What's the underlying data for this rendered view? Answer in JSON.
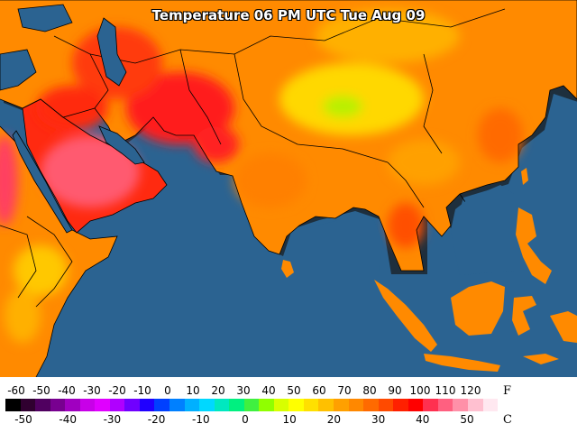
{
  "title": "Temperature 06 PM UTC Tue Aug 09",
  "legend": {
    "f_unit": "F",
    "c_unit": "C",
    "f_ticks": [
      "-60",
      "-50",
      "-40",
      "-30",
      "-20",
      "-10",
      "0",
      "10",
      "20",
      "30",
      "40",
      "50",
      "60",
      "70",
      "80",
      "90",
      "100",
      "110",
      "120"
    ],
    "c_ticks": [
      "-50",
      "-40",
      "-30",
      "-20",
      "-10",
      "0",
      "10",
      "20",
      "30",
      "40",
      "50"
    ],
    "colors": [
      "#000000",
      "#300030",
      "#500060",
      "#780090",
      "#a000c0",
      "#c800e8",
      "#e000ff",
      "#b000ff",
      "#7000ff",
      "#2000ff",
      "#0040ff",
      "#0080ff",
      "#00b0ff",
      "#00d8ff",
      "#00e8c0",
      "#00f080",
      "#40f040",
      "#90ff00",
      "#d8ff00",
      "#ffff00",
      "#ffe000",
      "#ffc000",
      "#ffa000",
      "#ff8800",
      "#ff6a00",
      "#ff4a00",
      "#ff2000",
      "#ff0000",
      "#ff3050",
      "#ff6080",
      "#ff90a8",
      "#ffc0d0",
      "#ffe8f0"
    ]
  }
}
